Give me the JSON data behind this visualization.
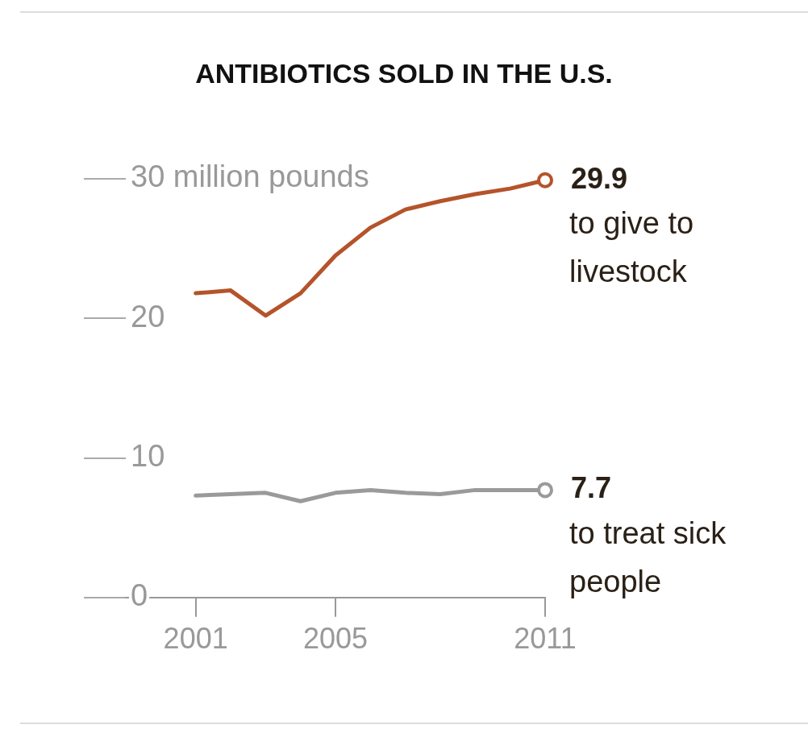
{
  "chart_data": {
    "type": "line",
    "title": "ANTIBIOTICS SOLD IN THE U.S.",
    "x": [
      2001,
      2002,
      2003,
      2004,
      2005,
      2006,
      2007,
      2008,
      2009,
      2010,
      2011
    ],
    "legend": "right",
    "xlim": [
      1999,
      2011
    ],
    "xticks": [
      2001,
      2005,
      2011
    ],
    "ylim": [
      0,
      30
    ],
    "yticks": [
      0,
      10,
      20,
      {
        "value": 30,
        "label": "30 million pounds"
      }
    ],
    "series": [
      {
        "name": "to give to livestock",
        "color": "#b5532a",
        "values": [
          21.8,
          22.0,
          20.2,
          21.8,
          24.5,
          26.5,
          27.8,
          28.4,
          28.9,
          29.3,
          29.9
        ],
        "value_labels": [
          null,
          null,
          null,
          null,
          null,
          null,
          null,
          null,
          null,
          null,
          "29.9"
        ]
      },
      {
        "name": "to treat sick people",
        "color": "#9a9a9a",
        "values": [
          7.3,
          7.4,
          7.5,
          6.9,
          7.5,
          7.7,
          7.5,
          7.4,
          7.7,
          7.7,
          7.7
        ],
        "value_labels": [
          null,
          null,
          null,
          null,
          null,
          null,
          null,
          null,
          null,
          null,
          "7.7"
        ]
      }
    ]
  }
}
